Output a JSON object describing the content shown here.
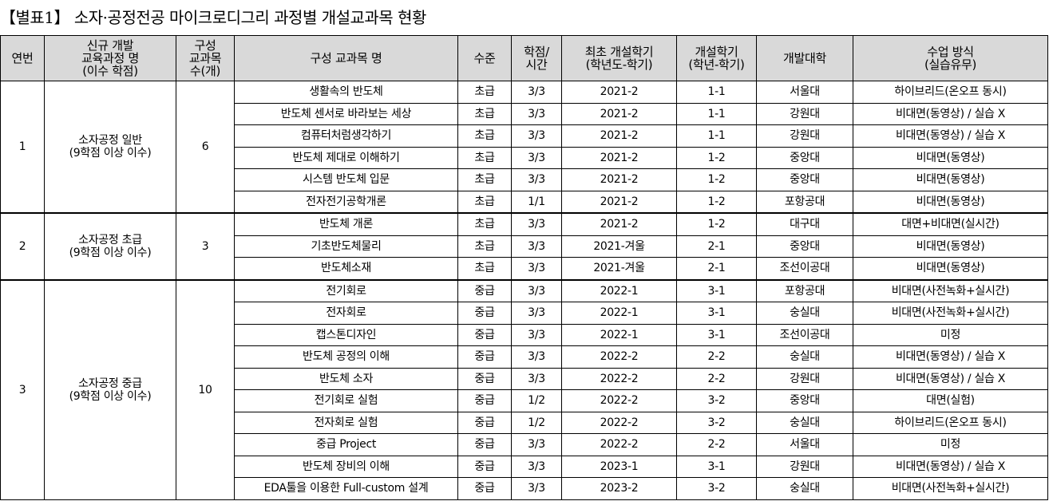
{
  "title": "【별표1】 소자·공정전공 마이크로디그리 과정별 개설교과목 현황",
  "headers": [
    "연번",
    "신규 개발\n교육과정 명\n(이수 학점)",
    "구성\n교과목\n수(개)",
    "구성 교과목 명",
    "수준",
    "학점/\n시간",
    "최초 개설학기\n(학년도-학기)",
    "개설학기\n(학년-학기)",
    "개발대학",
    "수업 방식\n(실습유무)"
  ],
  "groups": [
    {
      "no": "1",
      "program": "소자공정 일반\n(9학점 이상 이수)",
      "count": "6",
      "rows": [
        [
          "생활속의 반도체",
          "초급",
          "3/3",
          "2021-2",
          "1-1",
          "서울대",
          "하이브리드(온오프 동시)"
        ],
        [
          "반도체 센서로 바라보는 세상",
          "초급",
          "3/3",
          "2021-2",
          "1-1",
          "강원대",
          "비대면(동영상) / 실습 X"
        ],
        [
          "컴퓨터처럼생각하기",
          "초급",
          "3/3",
          "2021-2",
          "1-1",
          "강원대",
          "비대면(동영상) / 실습 X"
        ],
        [
          "반도체 제대로 이해하기",
          "초급",
          "3/3",
          "2021-2",
          "1-2",
          "중앙대",
          "비대면(동영상)"
        ],
        [
          "시스템 반도체 입문",
          "초급",
          "3/3",
          "2021-2",
          "1-2",
          "중앙대",
          "비대면(동영상)"
        ],
        [
          "전자전기공학개론",
          "초급",
          "1/1",
          "2021-2",
          "1-2",
          "포항공대",
          "비대면(동영상)"
        ]
      ]
    },
    {
      "no": "2",
      "program": "소자공정 초급\n(9학점 이상 이수)",
      "count": "3",
      "rows": [
        [
          "반도체 개론",
          "초급",
          "3/3",
          "2021-2",
          "1-2",
          "대구대",
          "대면+비대면(실시간)"
        ],
        [
          "기초반도체물리",
          "초급",
          "3/3",
          "2021-겨울",
          "2-1",
          "중앙대",
          "비대면(동영상)"
        ],
        [
          "반도체소재",
          "초급",
          "3/3",
          "2021-겨울",
          "2-1",
          "조선이공대",
          "비대면(동영상)"
        ]
      ]
    },
    {
      "no": "3",
      "program": "소자공정 중급\n(9학점 이상 이수)",
      "count": "10",
      "rows": [
        [
          "전기회로",
          "중급",
          "3/3",
          "2022-1",
          "3-1",
          "포항공대",
          "비대면(사전녹화+실시간)"
        ],
        [
          "전자회로",
          "중급",
          "3/3",
          "2022-1",
          "3-1",
          "숭실대",
          "비대면(사전녹화+실시간)"
        ],
        [
          "캡스톤디자인",
          "중급",
          "3/3",
          "2022-1",
          "3-1",
          "조선이공대",
          "미정"
        ],
        [
          "반도체 공정의 이해",
          "중급",
          "3/3",
          "2022-2",
          "2-2",
          "숭실대",
          "비대면(동영상) / 실습 X"
        ],
        [
          "반도체 소자",
          "중급",
          "3/3",
          "2022-2",
          "2-2",
          "강원대",
          "비대면(동영상) / 실습 X"
        ],
        [
          "전기회로 실험",
          "중급",
          "1/2",
          "2022-2",
          "3-2",
          "중앙대",
          "대면(실험)"
        ],
        [
          "전자회로 실험",
          "중급",
          "1/2",
          "2022-2",
          "3-2",
          "숭실대",
          "하이브리드(온오프 동시)"
        ],
        [
          "중급 Project",
          "중급",
          "3/3",
          "2022-2",
          "2-2",
          "서울대",
          "미정"
        ],
        [
          "반도체 장비의 이해",
          "중급",
          "3/3",
          "2023-1",
          "3-1",
          "강원대",
          "비대면(동영상) / 실습 X"
        ],
        [
          "EDA툴을 이용한 Full-custom 설계",
          "중급",
          "3/3",
          "2023-2",
          "3-2",
          "숭실대",
          "비대면(사전녹화+실시간)"
        ]
      ]
    }
  ]
}
